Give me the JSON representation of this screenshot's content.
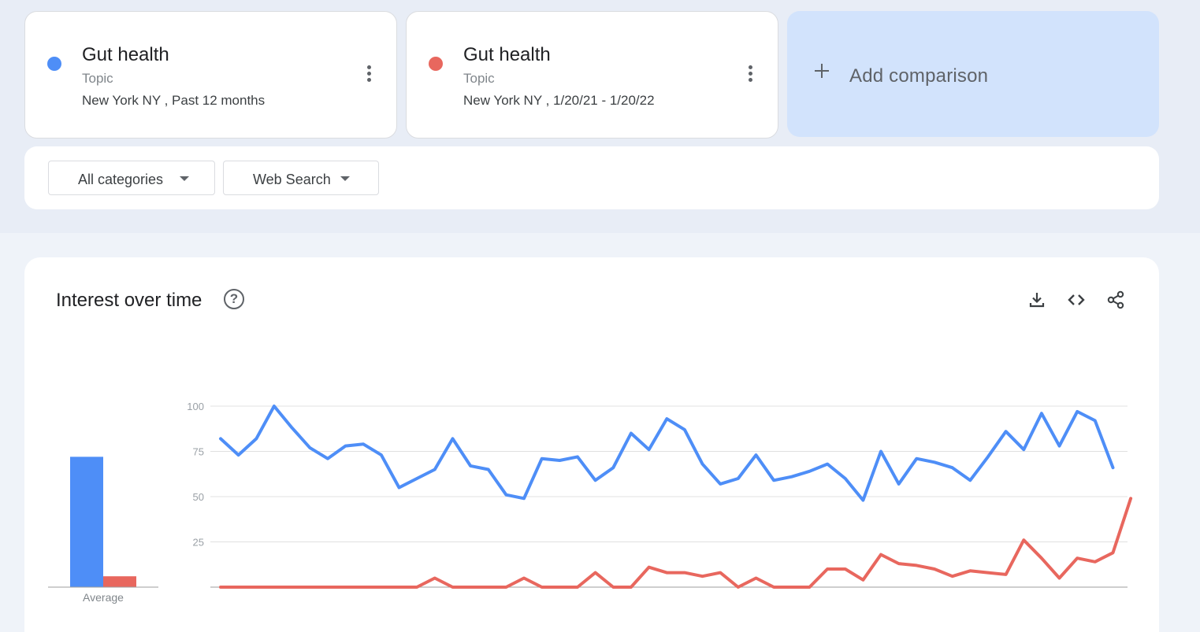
{
  "terms": [
    {
      "name": "Gut health",
      "type": "Topic",
      "meta": "New York NY , Past 12 months",
      "color": "#4e8ef7"
    },
    {
      "name": "Gut health",
      "type": "Topic",
      "meta": "New York NY , 1/20/21 - 1/20/22",
      "color": "#e8675e"
    }
  ],
  "add_comparison": {
    "label": "Add comparison",
    "icon": "plus-icon"
  },
  "filters": [
    {
      "label": "All categories",
      "icon": "caret-down-icon"
    },
    {
      "label": "Web Search",
      "icon": "caret-down-icon"
    }
  ],
  "panel": {
    "title": "Interest over time",
    "help_icon": "help-icon",
    "help_glyph": "?",
    "tools": [
      "download-icon",
      "embed-icon",
      "share-icon"
    ],
    "average_label": "Average"
  },
  "chart_data": {
    "type": "line",
    "ylim": [
      0,
      100
    ],
    "yticks": [
      "100",
      "75",
      "50",
      "25"
    ],
    "grid": true,
    "legend": "none",
    "series": [
      {
        "color": "#4e8ef7",
        "values": [
          82,
          73,
          82,
          100,
          88,
          77,
          71,
          78,
          79,
          73,
          55,
          60,
          65,
          82,
          67,
          65,
          51,
          49,
          71,
          70,
          72,
          59,
          66,
          85,
          76,
          93,
          87,
          68,
          57,
          60,
          73,
          59,
          61,
          64,
          68,
          60,
          48,
          75,
          57,
          71,
          69,
          66,
          59,
          72,
          86,
          76,
          96,
          78,
          97,
          92,
          66
        ]
      },
      {
        "color": "#e8675e",
        "values": [
          0,
          0,
          0,
          0,
          0,
          0,
          0,
          0,
          0,
          0,
          0,
          0,
          5,
          0,
          0,
          0,
          0,
          5,
          0,
          0,
          0,
          8,
          0,
          0,
          11,
          8,
          8,
          6,
          8,
          0,
          5,
          0,
          0,
          0,
          10,
          10,
          4,
          18,
          13,
          12,
          10,
          6,
          9,
          8,
          7,
          26,
          16,
          5,
          16,
          14,
          19,
          49
        ]
      }
    ],
    "averages": [
      72,
      6
    ]
  }
}
